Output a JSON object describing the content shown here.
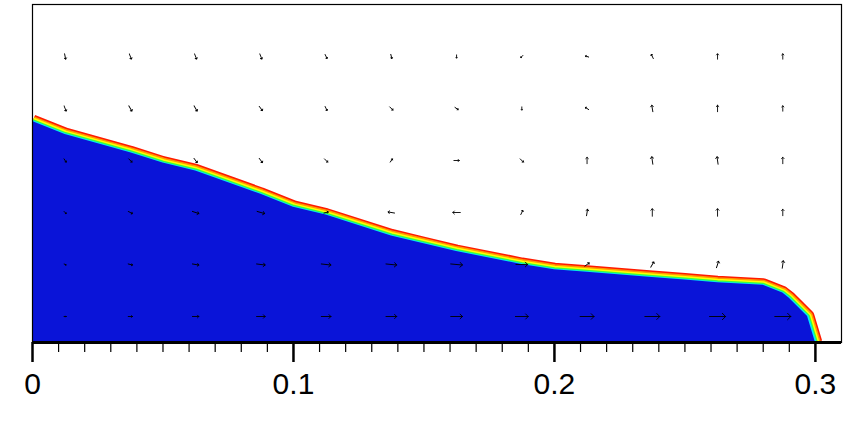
{
  "chart_data": {
    "type": "vector",
    "xlim": [
      0,
      0.31
    ],
    "xticks": [
      0,
      0.1,
      0.2,
      0.3
    ],
    "xticks_minor": [
      0.01,
      0.02,
      0.03,
      0.04,
      0.05,
      0.06,
      0.07,
      0.08,
      0.09,
      0.11,
      0.12,
      0.13,
      0.14,
      0.15,
      0.16,
      0.17,
      0.18,
      0.19,
      0.21,
      0.22,
      0.23,
      0.24,
      0.25,
      0.26,
      0.27,
      0.28,
      0.29
    ],
    "ylim": [
      0,
      0.13
    ],
    "tick_labels": "x",
    "grid": false,
    "color": "#0a14d8",
    "interface": {
      "x": [
        0,
        0.0125,
        0.0375,
        0.05,
        0.0625,
        0.0875,
        0.1,
        0.1125,
        0.1375,
        0.15,
        0.1625,
        0.1875,
        0.2,
        0.2125,
        0.2375,
        0.25,
        0.2625,
        0.28,
        0.2875,
        0.29,
        0.297,
        0.3
      ],
      "y": [
        0.085,
        0.08,
        0.073,
        0.069,
        0.066,
        0.057,
        0.052,
        0.049,
        0.041,
        0.038,
        0.035,
        0.03,
        0.028,
        0.027,
        0.025,
        0.024,
        0.023,
        0.022,
        0.019,
        0.017,
        0.01,
        0
      ],
      "colors": [
        "#00e5ff",
        "#3cff3c",
        "#ffff00",
        "#ff9900",
        "#ff1a00"
      ]
    },
    "vectors": {
      "x": [
        0.0125,
        0.0375,
        0.0625,
        0.0875,
        0.1125,
        0.1375,
        0.1625,
        0.1875,
        0.2125,
        0.2375,
        0.2625,
        0.2875,
        0.0125,
        0.0375,
        0.0625,
        0.0875,
        0.1125,
        0.1375,
        0.1625,
        0.1875,
        0.2125,
        0.2375,
        0.2625,
        0.2875,
        0.0125,
        0.0375,
        0.0625,
        0.0875,
        0.1125,
        0.1375,
        0.1625,
        0.1875,
        0.2125,
        0.2375,
        0.2625,
        0.2875,
        0.0125,
        0.0375,
        0.0625,
        0.0875,
        0.1125,
        0.1375,
        0.1625,
        0.1875,
        0.2125,
        0.2375,
        0.2625,
        0.2875,
        0.0125,
        0.0375,
        0.0625,
        0.0875,
        0.1125,
        0.1375,
        0.1625,
        0.1875,
        0.2125,
        0.2375,
        0.2625,
        0.2875,
        0.0125,
        0.0375,
        0.0625,
        0.0875,
        0.1125,
        0.1375,
        0.1625,
        0.1875,
        0.2125,
        0.2375,
        0.2625,
        0.2875
      ],
      "y": [
        0.01,
        0.01,
        0.01,
        0.01,
        0.01,
        0.01,
        0.01,
        0.01,
        0.01,
        0.01,
        0.01,
        0.01,
        0.03,
        0.03,
        0.03,
        0.03,
        0.03,
        0.03,
        0.03,
        0.03,
        0.03,
        0.03,
        0.03,
        0.03,
        0.05,
        0.05,
        0.05,
        0.05,
        0.05,
        0.05,
        0.05,
        0.05,
        0.05,
        0.05,
        0.05,
        0.05,
        0.07,
        0.07,
        0.07,
        0.07,
        0.07,
        0.07,
        0.07,
        0.07,
        0.07,
        0.07,
        0.07,
        0.07,
        0.09,
        0.09,
        0.09,
        0.09,
        0.09,
        0.09,
        0.09,
        0.09,
        0.09,
        0.09,
        0.09,
        0.09,
        0.11,
        0.11,
        0.11,
        0.11,
        0.11,
        0.11,
        0.11,
        0.11,
        0.11,
        0.11,
        0.11,
        0.11
      ],
      "u": [
        0.2,
        0.4,
        0.6,
        0.8,
        0.9,
        1.0,
        1.1,
        1.2,
        1.3,
        1.4,
        1.5,
        1.5,
        0.2,
        0.4,
        0.6,
        0.8,
        0.9,
        1.0,
        1.1,
        1.1,
        0.4,
        0.3,
        0.2,
        0.1,
        0.2,
        0.4,
        0.6,
        0.7,
        0.4,
        -0.6,
        -0.7,
        0.2,
        0.1,
        0,
        0,
        0,
        0.2,
        0.3,
        0.3,
        0.3,
        0.3,
        0.2,
        0.5,
        0.3,
        0,
        -0.1,
        -0.1,
        0,
        0.2,
        0.3,
        0.3,
        0.3,
        0.2,
        0.3,
        0.3,
        0,
        -0.3,
        -0.1,
        0,
        0,
        0.1,
        0.2,
        0.2,
        0.2,
        0.2,
        0.1,
        0,
        -0.2,
        -0.3,
        -0.2,
        0,
        0
      ],
      "v": [
        0,
        0,
        0,
        0,
        0,
        0,
        0,
        0,
        0,
        0,
        0,
        0,
        -0.1,
        -0.1,
        -0.1,
        -0.1,
        -0.1,
        -0.1,
        -0.1,
        0,
        0.3,
        0.5,
        0.6,
        0.7,
        -0.2,
        -0.2,
        -0.2,
        -0.2,
        0.1,
        0.1,
        0,
        0.4,
        0.6,
        0.7,
        0.7,
        0.6,
        -0.3,
        -0.3,
        -0.4,
        -0.4,
        -0.3,
        0.3,
        0,
        -0.3,
        0.6,
        0.7,
        0.7,
        0.6,
        -0.5,
        -0.5,
        -0.5,
        -0.4,
        -0.4,
        -0.3,
        -0.2,
        -0.3,
        0.2,
        0.6,
        0.6,
        0.5,
        -0.5,
        -0.5,
        -0.5,
        -0.5,
        -0.4,
        -0.4,
        -0.3,
        -0.2,
        0.1,
        0.4,
        0.5,
        0.5
      ]
    }
  }
}
